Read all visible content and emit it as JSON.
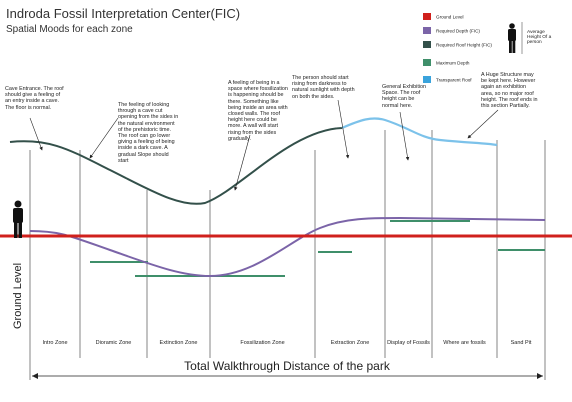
{
  "header": {
    "title": "Indroda Fossil Interpretation Center(FIC)",
    "subtitle": "Spatial Moods for each zone"
  },
  "legend": [
    {
      "label": "Ground Level",
      "color": "#d0201c"
    },
    {
      "label": "Required Depth (FIC)",
      "color": "#7b64a8"
    },
    {
      "label": "Required Roof Height (FIC)",
      "color": "#33504a"
    },
    {
      "label": "Maximum Depth",
      "color": "#3f8f6a"
    },
    {
      "label": "Transparent Roof",
      "color": "#3aa3dc"
    }
  ],
  "person_note": "Average Height Of a person",
  "annotations": [
    "Cave Entrance. The roof should give a feeling of an entry inside a cave. The floor is normal.",
    "The feeling of looking through a cave cut opening from the sides in the natural environment of the prehistoric time. The roof can go lower giving a feeling of being inside a dark cave. A gradual Slope should start",
    "A feeling of being in a space where fossilization is happening should be there. Something like being inside an area with closed walls. The roof height here could be more. A wall will start rising from the sides gradually.",
    "The person should start rising from darkness to natural sunlight with depth on both the sides.",
    "General Exhibition Space. The roof height can be normal here.",
    "A Huge Structure may be kept here. However again an exhibition area, so no major roof height. The roof ends in this section Partially."
  ],
  "zones": [
    "Intro Zone",
    "Dioramic Zone",
    "Extinction Zone",
    "Fossilization Zone",
    "Extraction Zone",
    "Display of Fossils",
    "Where are fossils",
    "Sand Pit"
  ],
  "side_label": "Ground Level",
  "footer": "Total Walkthrough Distance of the park"
}
